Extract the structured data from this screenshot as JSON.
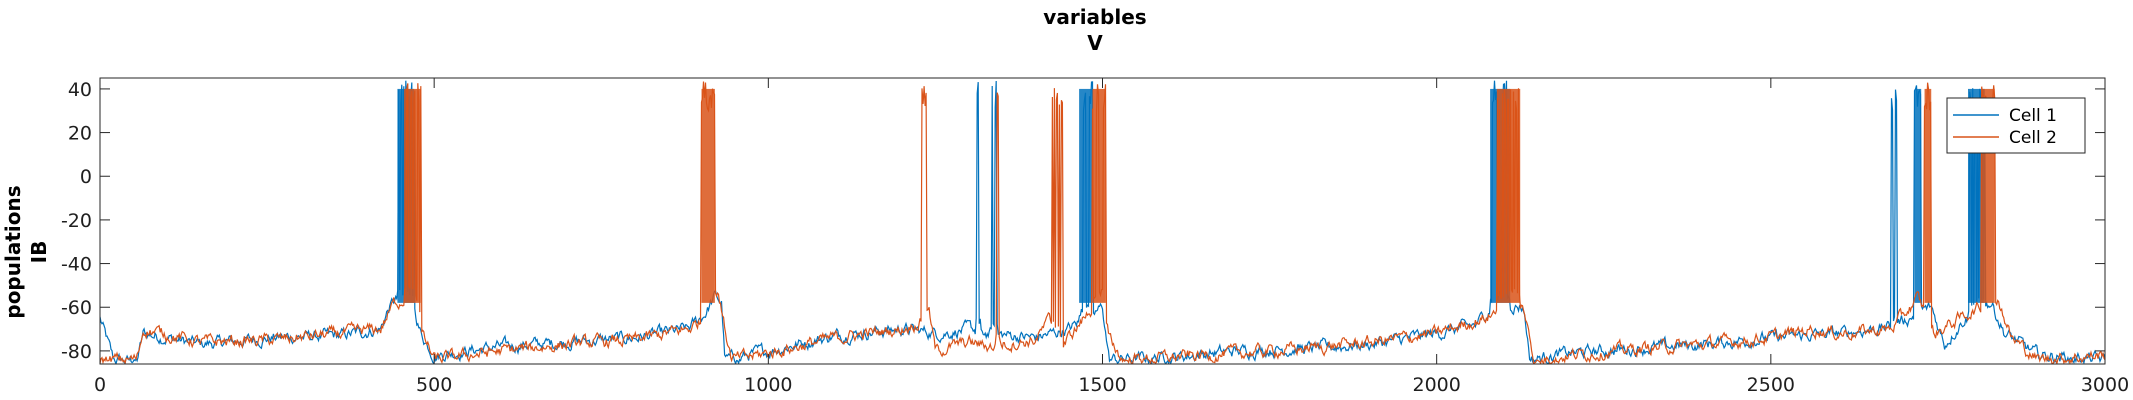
{
  "chart_data": {
    "type": "line",
    "title_lines": [
      "variables",
      "V"
    ],
    "ylabel_lines": [
      "populations",
      "IB"
    ],
    "xlim": [
      0,
      3000
    ],
    "ylim": [
      -86,
      45
    ],
    "x_ticks": [
      0,
      500,
      1000,
      1500,
      2000,
      2500,
      3000
    ],
    "y_ticks": [
      -80,
      -60,
      -40,
      -20,
      0,
      20,
      40
    ],
    "grid": false,
    "legend_position": "top-right",
    "series": [
      {
        "name": "Cell 1",
        "color": "#0072BD",
        "baseline": [
          [
            0,
            -65
          ],
          [
            20,
            -84
          ],
          [
            55,
            -85
          ],
          [
            65,
            -72
          ],
          [
            150,
            -77
          ],
          [
            260,
            -74
          ],
          [
            360,
            -73
          ],
          [
            420,
            -70
          ],
          [
            430,
            -62
          ],
          [
            440,
            -57
          ],
          [
            465,
            -57
          ],
          [
            480,
            -72
          ],
          [
            500,
            -82
          ],
          [
            600,
            -78
          ],
          [
            700,
            -76
          ],
          [
            800,
            -74
          ],
          [
            880,
            -70
          ],
          [
            905,
            -63
          ],
          [
            920,
            -55
          ],
          [
            930,
            -58
          ],
          [
            935,
            -84
          ],
          [
            1000,
            -80
          ],
          [
            1100,
            -73
          ],
          [
            1200,
            -70
          ],
          [
            1260,
            -72
          ],
          [
            1300,
            -70
          ],
          [
            1330,
            -72
          ],
          [
            1400,
            -74
          ],
          [
            1450,
            -70
          ],
          [
            1490,
            -62
          ],
          [
            1500,
            -60
          ],
          [
            1510,
            -84
          ],
          [
            1600,
            -83
          ],
          [
            1700,
            -80
          ],
          [
            1800,
            -79
          ],
          [
            1900,
            -77
          ],
          [
            2000,
            -72
          ],
          [
            2060,
            -68
          ],
          [
            2075,
            -62
          ],
          [
            2100,
            -58
          ],
          [
            2130,
            -60
          ],
          [
            2140,
            -84
          ],
          [
            2200,
            -81
          ],
          [
            2300,
            -79
          ],
          [
            2400,
            -77
          ],
          [
            2500,
            -74
          ],
          [
            2600,
            -72
          ],
          [
            2680,
            -69
          ],
          [
            2700,
            -66
          ],
          [
            2740,
            -60
          ],
          [
            2760,
            -77
          ],
          [
            2790,
            -65
          ],
          [
            2830,
            -58
          ],
          [
            2850,
            -72
          ],
          [
            2900,
            -82
          ],
          [
            3000,
            -84
          ]
        ],
        "bursts": [
          [
            445,
            470,
            40
          ],
          [
            1310,
            1318,
            4
          ],
          [
            1335,
            1343,
            4
          ],
          [
            1465,
            1485,
            38
          ],
          [
            2080,
            2110,
            38
          ],
          [
            2680,
            2688,
            4
          ],
          [
            2715,
            2725,
            40
          ],
          [
            2795,
            2820,
            40
          ]
        ]
      },
      {
        "name": "Cell 2",
        "color": "#D95319",
        "baseline": [
          [
            0,
            -84
          ],
          [
            55,
            -84
          ],
          [
            65,
            -70
          ],
          [
            150,
            -76
          ],
          [
            260,
            -75
          ],
          [
            360,
            -72
          ],
          [
            420,
            -70
          ],
          [
            440,
            -58
          ],
          [
            470,
            -55
          ],
          [
            485,
            -74
          ],
          [
            500,
            -84
          ],
          [
            600,
            -80
          ],
          [
            700,
            -77
          ],
          [
            800,
            -75
          ],
          [
            880,
            -70
          ],
          [
            900,
            -66
          ],
          [
            925,
            -52
          ],
          [
            935,
            -70
          ],
          [
            945,
            -84
          ],
          [
            1000,
            -81
          ],
          [
            1100,
            -74
          ],
          [
            1200,
            -70
          ],
          [
            1230,
            -66
          ],
          [
            1240,
            -62
          ],
          [
            1250,
            -80
          ],
          [
            1300,
            -76
          ],
          [
            1330,
            -78
          ],
          [
            1400,
            -75
          ],
          [
            1420,
            -66
          ],
          [
            1440,
            -78
          ],
          [
            1480,
            -62
          ],
          [
            1500,
            -56
          ],
          [
            1510,
            -74
          ],
          [
            1530,
            -84
          ],
          [
            1600,
            -83
          ],
          [
            1700,
            -81
          ],
          [
            1800,
            -79
          ],
          [
            1900,
            -76
          ],
          [
            2000,
            -72
          ],
          [
            2080,
            -64
          ],
          [
            2110,
            -56
          ],
          [
            2130,
            -60
          ],
          [
            2145,
            -84
          ],
          [
            2200,
            -82
          ],
          [
            2300,
            -79
          ],
          [
            2400,
            -77
          ],
          [
            2500,
            -74
          ],
          [
            2560,
            -70
          ],
          [
            2600,
            -72
          ],
          [
            2680,
            -70
          ],
          [
            2720,
            -56
          ],
          [
            2745,
            -72
          ],
          [
            2800,
            -62
          ],
          [
            2840,
            -56
          ],
          [
            2860,
            -74
          ],
          [
            2900,
            -84
          ],
          [
            3000,
            -82
          ]
        ],
        "bursts": [
          [
            455,
            480,
            38
          ],
          [
            900,
            920,
            40
          ],
          [
            1230,
            1236,
            4
          ],
          [
            1340,
            1346,
            3
          ],
          [
            1425,
            1440,
            6
          ],
          [
            1485,
            1505,
            38
          ],
          [
            2090,
            2125,
            38
          ],
          [
            2730,
            2740,
            40
          ],
          [
            2815,
            2835,
            40
          ]
        ]
      }
    ]
  }
}
